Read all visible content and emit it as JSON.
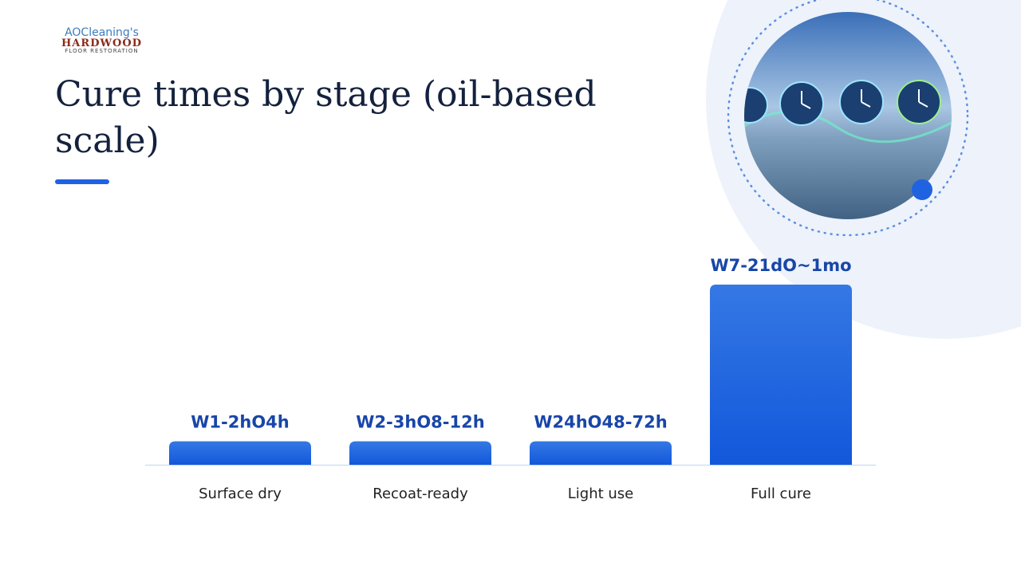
{
  "logo": {
    "line1": "AOCleaning's",
    "line2": "HARDWOOD",
    "line3": "FLOOR RESTORATION"
  },
  "chart_data": {
    "type": "bar",
    "title": "Cure times by stage (oil-based scale)",
    "categories": [
      "Surface dry",
      "Recoat-ready",
      "Light use",
      "Full cure"
    ],
    "values": [
      13,
      13,
      13,
      100
    ],
    "bar_labels": [
      "W1-2hO4h",
      "W2-3hO8-12h",
      "W24hO48-72h",
      "W7-21dO~1mo"
    ],
    "color": "#1f63e0",
    "ylim": [
      0,
      100
    ]
  }
}
